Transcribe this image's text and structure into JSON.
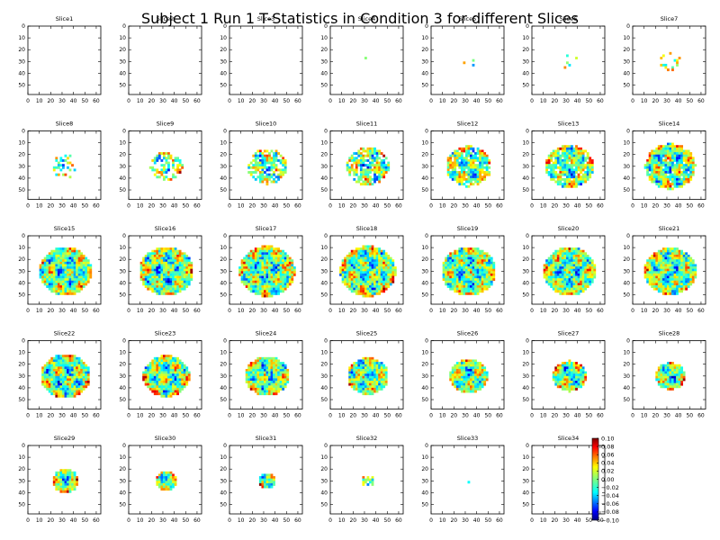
{
  "figure": {
    "title": "Subject 1 Run 1 T-Statistics in Condition 3 for different Slices"
  },
  "chart_data": {
    "type": "heatmap",
    "title": "Subject 1 Run 1 T-Statistics in Condition 3 for different Slices",
    "colormap": "jet",
    "value_range": [
      -0.1,
      0.1
    ],
    "x_ticks": [
      "0",
      "10",
      "20",
      "30",
      "40",
      "50",
      "60"
    ],
    "y_ticks": [
      "0",
      "10",
      "20",
      "30",
      "40",
      "50"
    ],
    "xlim": [
      0,
      64
    ],
    "ylim": [
      0,
      58
    ],
    "colorbar_ticks": [
      "0.10",
      "0.08",
      "0.06",
      "0.04",
      "0.02",
      "0.00",
      "−0.02",
      "−0.04",
      "−0.06",
      "−0.08",
      "−0.10"
    ],
    "panels": [
      {
        "label": "Slice1",
        "extent": 0.1,
        "coverage": 0.1,
        "hot": 0.45
      },
      {
        "label": "Slice2",
        "extent": 0.11,
        "coverage": 0.1,
        "hot": 0.45
      },
      {
        "label": "Slice3",
        "extent": 0.12,
        "coverage": 0.1,
        "hot": 0.4
      },
      {
        "label": "Slice4",
        "extent": 0.14,
        "coverage": 0.12,
        "hot": 0.4
      },
      {
        "label": "Slice5",
        "extent": 0.18,
        "coverage": 0.15,
        "hot": 0.35
      },
      {
        "label": "Slice6",
        "extent": 0.24,
        "coverage": 0.2,
        "hot": 0.35
      },
      {
        "label": "Slice7",
        "extent": 0.3,
        "coverage": 0.3,
        "hot": 0.3
      },
      {
        "label": "Slice8",
        "extent": 0.4,
        "coverage": 0.4,
        "hot": 0.35
      },
      {
        "label": "Slice9",
        "extent": 0.48,
        "coverage": 0.55,
        "hot": 0.4
      },
      {
        "label": "Slice10",
        "extent": 0.58,
        "coverage": 0.7,
        "hot": 0.35
      },
      {
        "label": "Slice11",
        "extent": 0.62,
        "coverage": 0.78,
        "hot": 0.3
      },
      {
        "label": "Slice12",
        "extent": 0.66,
        "coverage": 0.85,
        "hot": 0.3
      },
      {
        "label": "Slice13",
        "extent": 0.7,
        "coverage": 0.92,
        "hot": 0.25
      },
      {
        "label": "Slice14",
        "extent": 0.74,
        "coverage": 0.95,
        "hot": 0.25
      },
      {
        "label": "Slice15",
        "extent": 0.78,
        "coverage": 1.0,
        "hot": 0.3
      },
      {
        "label": "Slice16",
        "extent": 0.8,
        "coverage": 1.0,
        "hot": 0.4
      },
      {
        "label": "Slice17",
        "extent": 0.82,
        "coverage": 1.0,
        "hot": 0.4
      },
      {
        "label": "Slice18",
        "extent": 0.82,
        "coverage": 1.0,
        "hot": 0.4
      },
      {
        "label": "Slice19",
        "extent": 0.8,
        "coverage": 1.0,
        "hot": 0.25
      },
      {
        "label": "Slice20",
        "extent": 0.78,
        "coverage": 1.0,
        "hot": 0.3
      },
      {
        "label": "Slice21",
        "extent": 0.76,
        "coverage": 1.0,
        "hot": 0.3
      },
      {
        "label": "Slice22",
        "extent": 0.72,
        "coverage": 1.0,
        "hot": 0.3
      },
      {
        "label": "Slice23",
        "extent": 0.68,
        "coverage": 1.0,
        "hot": 0.3
      },
      {
        "label": "Slice24",
        "extent": 0.64,
        "coverage": 1.0,
        "hot": 0.25
      },
      {
        "label": "Slice25",
        "extent": 0.6,
        "coverage": 1.0,
        "hot": 0.25
      },
      {
        "label": "Slice26",
        "extent": 0.56,
        "coverage": 1.0,
        "hot": 0.35
      },
      {
        "label": "Slice27",
        "extent": 0.5,
        "coverage": 1.0,
        "hot": 0.4
      },
      {
        "label": "Slice28",
        "extent": 0.44,
        "coverage": 1.0,
        "hot": 0.35
      },
      {
        "label": "Slice29",
        "extent": 0.38,
        "coverage": 1.0,
        "hot": 0.4
      },
      {
        "label": "Slice30",
        "extent": 0.32,
        "coverage": 1.0,
        "hot": 0.4
      },
      {
        "label": "Slice31",
        "extent": 0.26,
        "coverage": 1.0,
        "hot": 0.45
      },
      {
        "label": "Slice32",
        "extent": 0.18,
        "coverage": 0.7,
        "hot": 0.3
      },
      {
        "label": "Slice33",
        "extent": 0.05,
        "coverage": 0.5,
        "hot": 0.2
      },
      {
        "label": "Slice34",
        "extent": 0.0,
        "coverage": 0.0,
        "hot": 0.0
      }
    ]
  }
}
